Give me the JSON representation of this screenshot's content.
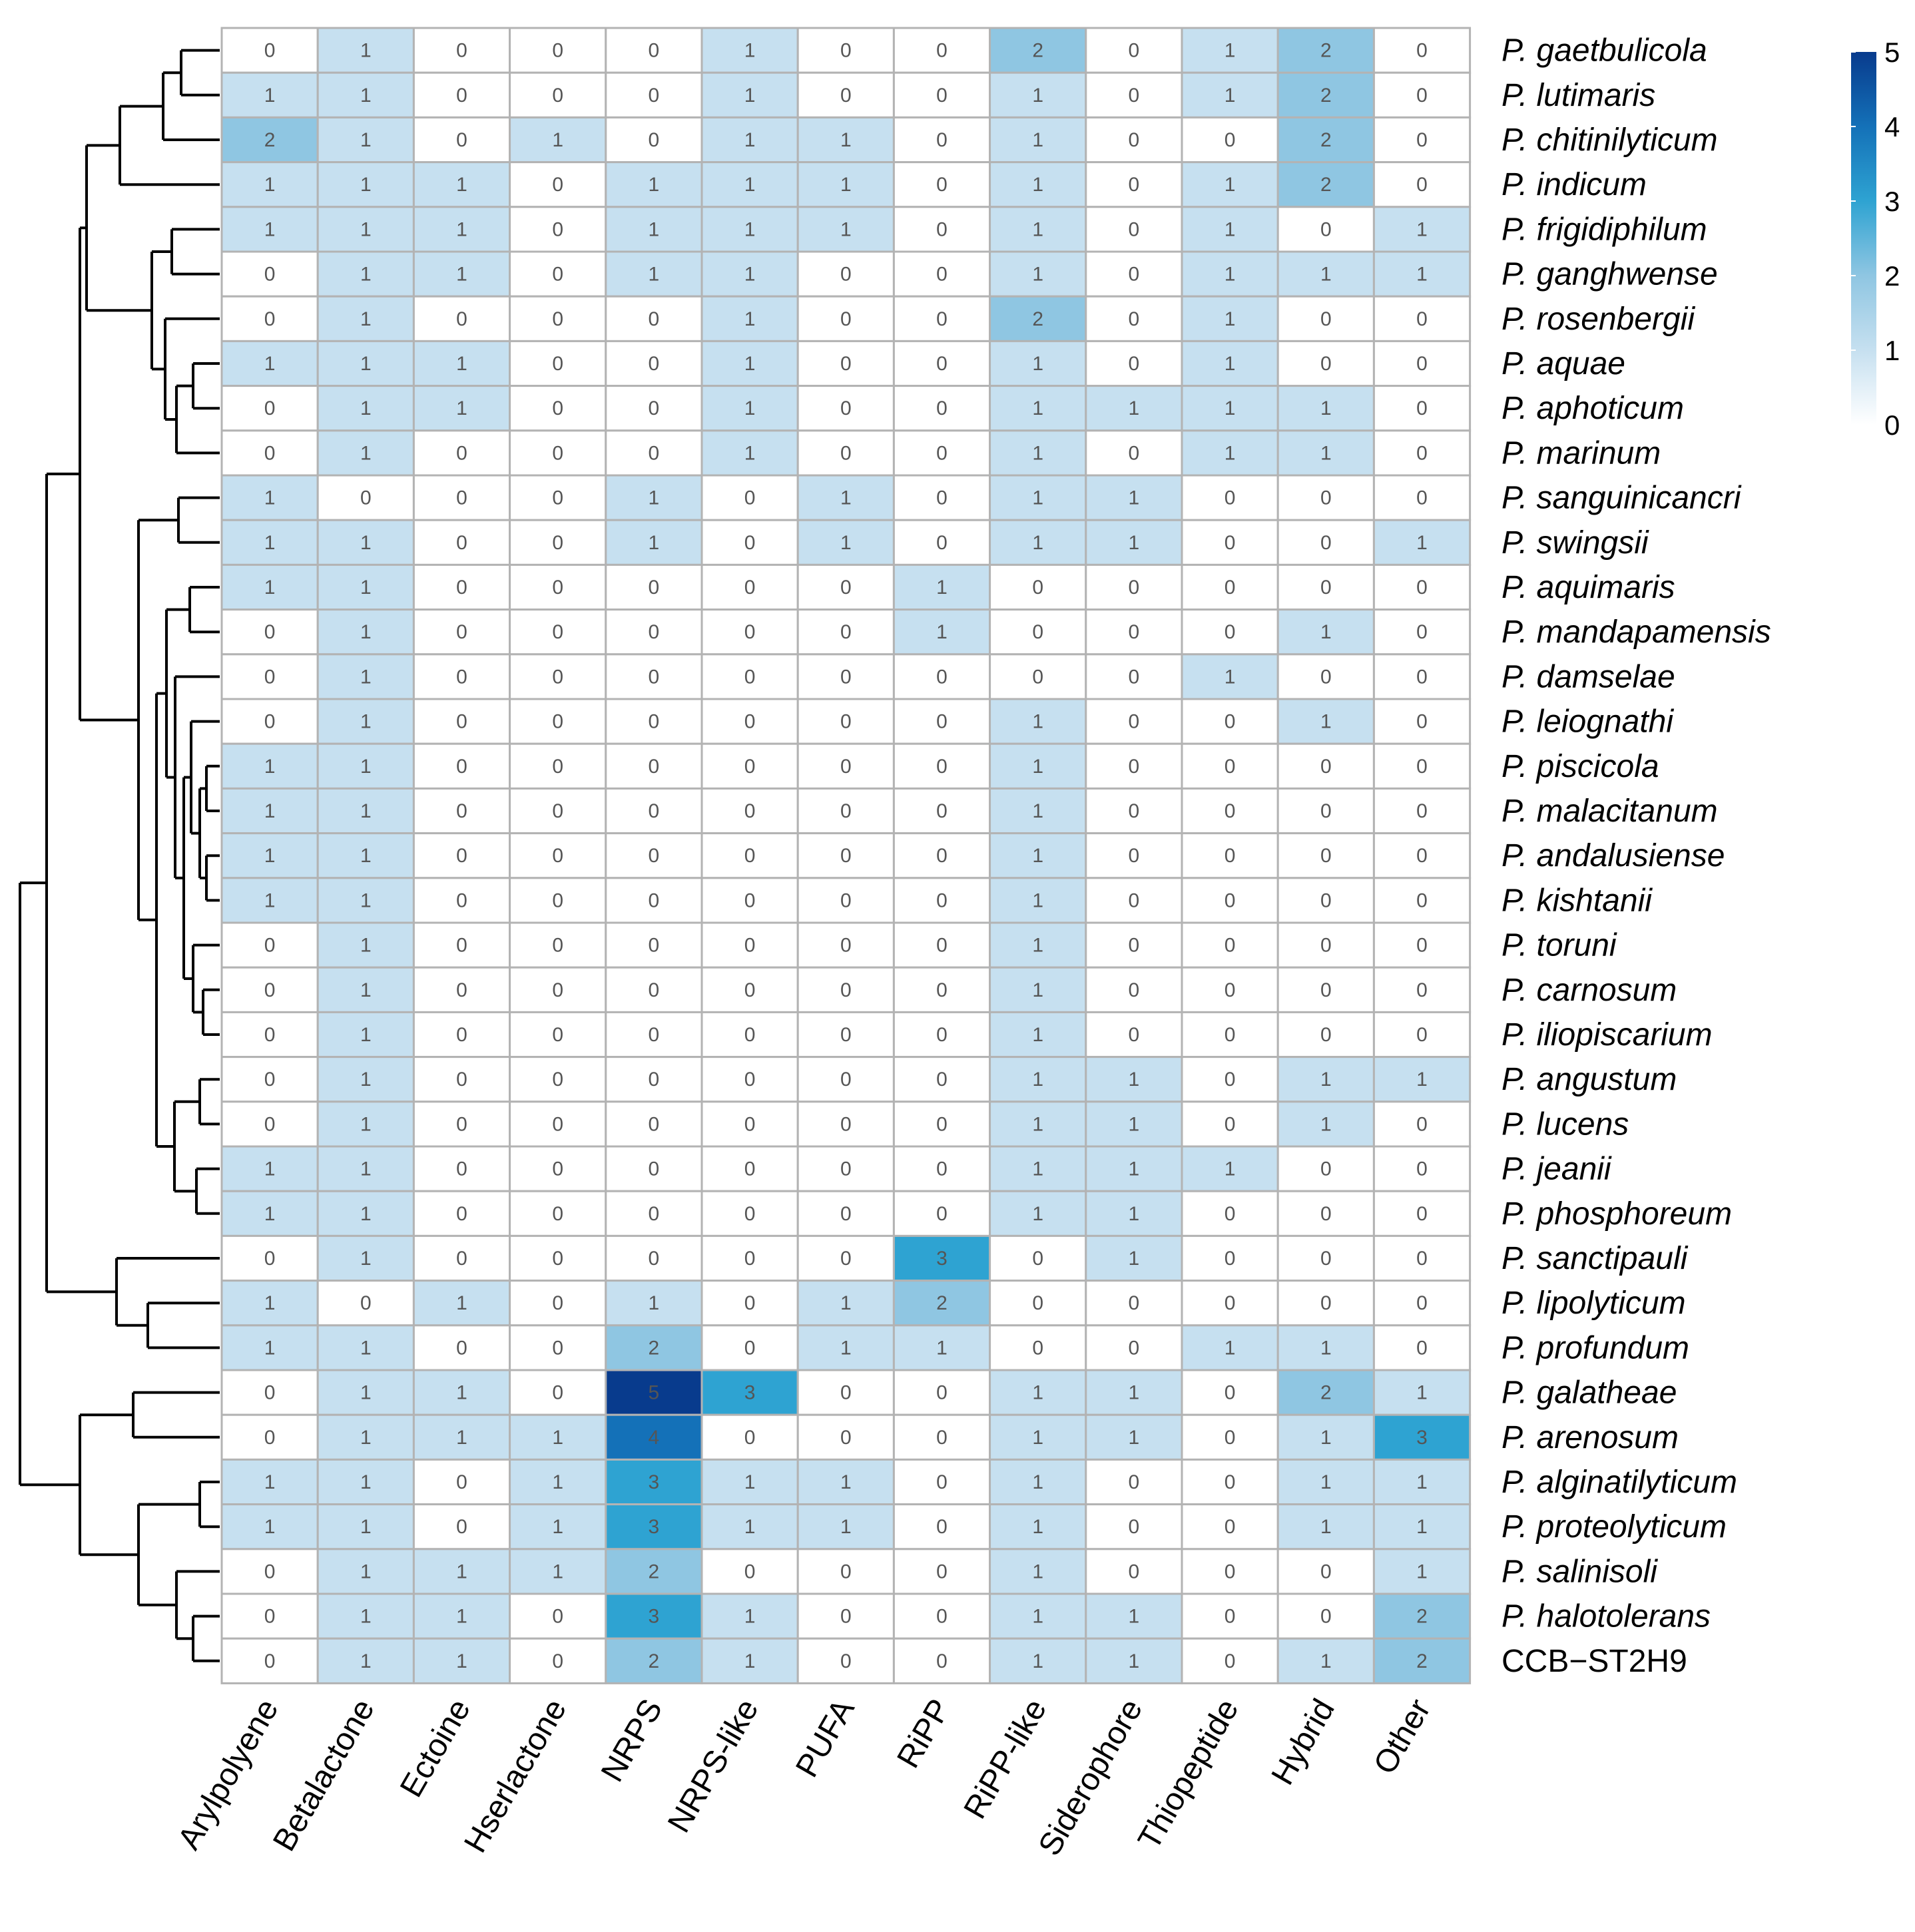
{
  "chart_data": {
    "type": "heatmap",
    "title": "",
    "columns": [
      "Arylpolyene",
      "Betalactone",
      "Ectoine",
      "Hserlactone",
      "NRPS",
      "NRPS-like",
      "PUFA",
      "RiPP",
      "RiPP-like",
      "Siderophore",
      "Thiopeptide",
      "Hybrid",
      "Other"
    ],
    "rows": [
      {
        "prefix": "P.",
        "name": "gaetbulicola",
        "italic": true
      },
      {
        "prefix": "P.",
        "name": "lutimaris",
        "italic": true
      },
      {
        "prefix": "P.",
        "name": "chitinilyticum",
        "italic": true
      },
      {
        "prefix": "P.",
        "name": "indicum",
        "italic": true
      },
      {
        "prefix": "P.",
        "name": "frigidiphilum",
        "italic": true
      },
      {
        "prefix": "P.",
        "name": "ganghwense",
        "italic": true
      },
      {
        "prefix": "P.",
        "name": "rosenbergii",
        "italic": true
      },
      {
        "prefix": "P.",
        "name": "aquae",
        "italic": true
      },
      {
        "prefix": "P.",
        "name": "aphoticum",
        "italic": true
      },
      {
        "prefix": "P.",
        "name": "marinum",
        "italic": true
      },
      {
        "prefix": "P.",
        "name": "sanguinicancri",
        "italic": true
      },
      {
        "prefix": "P.",
        "name": "swingsii",
        "italic": true
      },
      {
        "prefix": "P.",
        "name": "aquimaris",
        "italic": true
      },
      {
        "prefix": "P.",
        "name": "mandapamensis",
        "italic": true
      },
      {
        "prefix": "P.",
        "name": "damselae",
        "italic": true
      },
      {
        "prefix": "P.",
        "name": "leiognathi",
        "italic": true
      },
      {
        "prefix": "P.",
        "name": "piscicola",
        "italic": true
      },
      {
        "prefix": "P.",
        "name": "malacitanum",
        "italic": true
      },
      {
        "prefix": "P.",
        "name": "andalusiense",
        "italic": true
      },
      {
        "prefix": "P.",
        "name": "kishtanii",
        "italic": true
      },
      {
        "prefix": "P.",
        "name": "toruni",
        "italic": true
      },
      {
        "prefix": "P.",
        "name": "carnosum",
        "italic": true
      },
      {
        "prefix": "P.",
        "name": "iliopiscarium",
        "italic": true
      },
      {
        "prefix": "P.",
        "name": "angustum",
        "italic": true
      },
      {
        "prefix": "P.",
        "name": "lucens",
        "italic": true
      },
      {
        "prefix": "P.",
        "name": "jeanii",
        "italic": true
      },
      {
        "prefix": "P.",
        "name": "phosphoreum",
        "italic": true
      },
      {
        "prefix": "P.",
        "name": "sanctipauli",
        "italic": true
      },
      {
        "prefix": "P.",
        "name": "lipolyticum",
        "italic": true
      },
      {
        "prefix": "P.",
        "name": "profundum",
        "italic": true
      },
      {
        "prefix": "P.",
        "name": "galatheae",
        "italic": true
      },
      {
        "prefix": "P.",
        "name": "arenosum",
        "italic": true
      },
      {
        "prefix": "P.",
        "name": "alginatilyticum",
        "italic": true
      },
      {
        "prefix": "P.",
        "name": "proteolyticum",
        "italic": true
      },
      {
        "prefix": "P.",
        "name": "salinisoli",
        "italic": true
      },
      {
        "prefix": "P.",
        "name": "halotolerans",
        "italic": true
      },
      {
        "prefix": "",
        "name": "CCB−ST2H9",
        "italic": false
      }
    ],
    "values": [
      [
        0,
        1,
        0,
        0,
        0,
        1,
        0,
        0,
        2,
        0,
        1,
        2,
        0
      ],
      [
        1,
        1,
        0,
        0,
        0,
        1,
        0,
        0,
        1,
        0,
        1,
        2,
        0
      ],
      [
        2,
        1,
        0,
        1,
        0,
        1,
        1,
        0,
        1,
        0,
        0,
        2,
        0
      ],
      [
        1,
        1,
        1,
        0,
        1,
        1,
        1,
        0,
        1,
        0,
        1,
        2,
        0
      ],
      [
        1,
        1,
        1,
        0,
        1,
        1,
        1,
        0,
        1,
        0,
        1,
        0,
        1
      ],
      [
        0,
        1,
        1,
        0,
        1,
        1,
        0,
        0,
        1,
        0,
        1,
        1,
        1
      ],
      [
        0,
        1,
        0,
        0,
        0,
        1,
        0,
        0,
        2,
        0,
        1,
        0,
        0
      ],
      [
        1,
        1,
        1,
        0,
        0,
        1,
        0,
        0,
        1,
        0,
        1,
        0,
        0
      ],
      [
        0,
        1,
        1,
        0,
        0,
        1,
        0,
        0,
        1,
        1,
        1,
        1,
        0
      ],
      [
        0,
        1,
        0,
        0,
        0,
        1,
        0,
        0,
        1,
        0,
        1,
        1,
        0
      ],
      [
        1,
        0,
        0,
        0,
        1,
        0,
        1,
        0,
        1,
        1,
        0,
        0,
        0
      ],
      [
        1,
        1,
        0,
        0,
        1,
        0,
        1,
        0,
        1,
        1,
        0,
        0,
        1
      ],
      [
        1,
        1,
        0,
        0,
        0,
        0,
        0,
        1,
        0,
        0,
        0,
        0,
        0
      ],
      [
        0,
        1,
        0,
        0,
        0,
        0,
        0,
        1,
        0,
        0,
        0,
        1,
        0
      ],
      [
        0,
        1,
        0,
        0,
        0,
        0,
        0,
        0,
        0,
        0,
        1,
        0,
        0
      ],
      [
        0,
        1,
        0,
        0,
        0,
        0,
        0,
        0,
        1,
        0,
        0,
        1,
        0
      ],
      [
        1,
        1,
        0,
        0,
        0,
        0,
        0,
        0,
        1,
        0,
        0,
        0,
        0
      ],
      [
        1,
        1,
        0,
        0,
        0,
        0,
        0,
        0,
        1,
        0,
        0,
        0,
        0
      ],
      [
        1,
        1,
        0,
        0,
        0,
        0,
        0,
        0,
        1,
        0,
        0,
        0,
        0
      ],
      [
        1,
        1,
        0,
        0,
        0,
        0,
        0,
        0,
        1,
        0,
        0,
        0,
        0
      ],
      [
        0,
        1,
        0,
        0,
        0,
        0,
        0,
        0,
        1,
        0,
        0,
        0,
        0
      ],
      [
        0,
        1,
        0,
        0,
        0,
        0,
        0,
        0,
        1,
        0,
        0,
        0,
        0
      ],
      [
        0,
        1,
        0,
        0,
        0,
        0,
        0,
        0,
        1,
        0,
        0,
        0,
        0
      ],
      [
        0,
        1,
        0,
        0,
        0,
        0,
        0,
        0,
        1,
        1,
        0,
        1,
        1
      ],
      [
        0,
        1,
        0,
        0,
        0,
        0,
        0,
        0,
        1,
        1,
        0,
        1,
        0
      ],
      [
        1,
        1,
        0,
        0,
        0,
        0,
        0,
        0,
        1,
        1,
        1,
        0,
        0
      ],
      [
        1,
        1,
        0,
        0,
        0,
        0,
        0,
        0,
        1,
        1,
        0,
        0,
        0
      ],
      [
        0,
        1,
        0,
        0,
        0,
        0,
        0,
        3,
        0,
        1,
        0,
        0,
        0
      ],
      [
        1,
        0,
        1,
        0,
        1,
        0,
        1,
        2,
        0,
        0,
        0,
        0,
        0
      ],
      [
        1,
        1,
        0,
        0,
        2,
        0,
        1,
        1,
        0,
        0,
        1,
        1,
        0
      ],
      [
        0,
        1,
        1,
        0,
        5,
        3,
        0,
        0,
        1,
        1,
        0,
        2,
        1
      ],
      [
        0,
        1,
        1,
        1,
        4,
        0,
        0,
        0,
        1,
        1,
        0,
        1,
        3
      ],
      [
        1,
        1,
        0,
        1,
        3,
        1,
        1,
        0,
        1,
        0,
        0,
        1,
        1
      ],
      [
        1,
        1,
        0,
        1,
        3,
        1,
        1,
        0,
        1,
        0,
        0,
        1,
        1
      ],
      [
        0,
        1,
        1,
        1,
        2,
        0,
        0,
        0,
        1,
        0,
        0,
        0,
        1
      ],
      [
        0,
        1,
        1,
        0,
        3,
        1,
        0,
        0,
        1,
        1,
        0,
        0,
        2
      ],
      [
        0,
        1,
        1,
        0,
        2,
        1,
        0,
        0,
        1,
        1,
        0,
        1,
        2
      ]
    ],
    "legend": {
      "min": 0,
      "max": 5,
      "ticks": [
        0,
        1,
        2,
        3,
        4,
        5
      ],
      "colors": [
        "#ffffff",
        "#c6e0f0",
        "#8fc6e2",
        "#2ea3d2",
        "#1471b8",
        "#083b8d"
      ]
    },
    "cell_border_color": "#b3b3b3",
    "dendrogram_color": "#000000"
  }
}
